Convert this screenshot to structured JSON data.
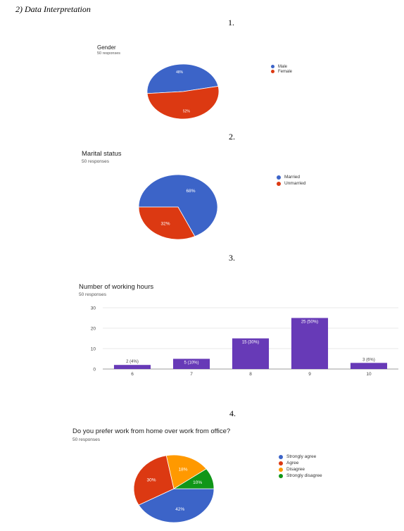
{
  "document": {
    "heading": "2)   Data Interpretation",
    "numbers": [
      "1.",
      "2.",
      "3.",
      "4."
    ]
  },
  "colors": {
    "blue": "#3c64c8",
    "red": "#dc3912",
    "orange": "#ff9900",
    "green": "#109618",
    "purple": "#673ab7"
  },
  "chart_data": [
    {
      "type": "pie",
      "title": "Gender",
      "subtitle": "50 responses",
      "legend_position": "right",
      "slices": [
        {
          "label": "Male",
          "value": 48,
          "display": "48%",
          "color": "#3c64c8"
        },
        {
          "label": "Female",
          "value": 52,
          "display": "52%",
          "color": "#dc3912"
        }
      ]
    },
    {
      "type": "pie",
      "title": "Marital status",
      "subtitle": "50 responses",
      "legend_position": "right",
      "slices": [
        {
          "label": "Married",
          "value": 68,
          "display": "68%",
          "color": "#3c64c8"
        },
        {
          "label": "Unmarried",
          "value": 32,
          "display": "32%",
          "color": "#dc3912"
        }
      ]
    },
    {
      "type": "bar",
      "title": "Number of working hours",
      "subtitle": "50 responses",
      "categories": [
        "6",
        "7",
        "8",
        "9",
        "10"
      ],
      "values": [
        2,
        5,
        15,
        25,
        3
      ],
      "labels": [
        "2 (4%)",
        "5 (10%)",
        "15 (30%)",
        "25 (50%)",
        "3 (6%)"
      ],
      "ylim": [
        0,
        30
      ],
      "yticks": [
        0,
        10,
        20,
        30
      ],
      "grid": true,
      "color": "#673ab7"
    },
    {
      "type": "pie",
      "title": "Do you prefer work from home over work from office?",
      "subtitle": "50 responses",
      "legend_position": "right",
      "slices": [
        {
          "label": "Strongly agree",
          "value": 42,
          "display": "42%",
          "color": "#3c64c8"
        },
        {
          "label": "Agree",
          "value": 30,
          "display": "30%",
          "color": "#dc3912"
        },
        {
          "label": "Disagree",
          "value": 18,
          "display": "18%",
          "color": "#ff9900"
        },
        {
          "label": "Strongly disagree",
          "value": 10,
          "display": "10%",
          "color": "#109618"
        }
      ]
    }
  ]
}
